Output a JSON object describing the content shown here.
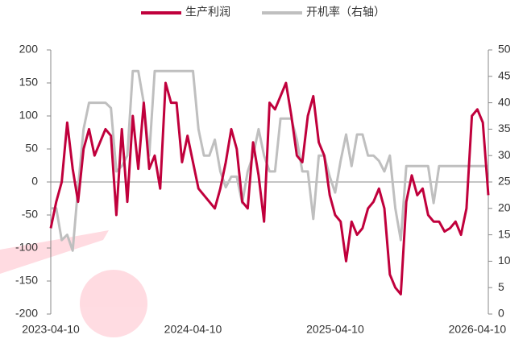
{
  "chart_data": {
    "type": "line",
    "categories": [
      "2023-04-10",
      null,
      null,
      null,
      null,
      null,
      null,
      null,
      null,
      null,
      null,
      null,
      null,
      null,
      null,
      null,
      null,
      null,
      null,
      null,
      null,
      null,
      null,
      null,
      null,
      null,
      "2024-04-10",
      null,
      null,
      null,
      null,
      null,
      null,
      null,
      null,
      null,
      null,
      null,
      null,
      null,
      null,
      null,
      null,
      null,
      null,
      null,
      null,
      null,
      null,
      null,
      null,
      null,
      "2025-04-10",
      null,
      null,
      null,
      null,
      null,
      null,
      null,
      null,
      null,
      null,
      null,
      null,
      null,
      null,
      null,
      null,
      null,
      null,
      null,
      null,
      null,
      null,
      null,
      null,
      null,
      "2026-04-10",
      null,
      null
    ],
    "series": [
      {
        "name": "生产利润",
        "color": "#c0003c",
        "axis": "y",
        "values": [
          -70,
          -30,
          0,
          90,
          20,
          -30,
          50,
          80,
          40,
          60,
          80,
          70,
          -50,
          80,
          -30,
          100,
          20,
          120,
          20,
          40,
          -10,
          150,
          120,
          120,
          30,
          70,
          30,
          -10,
          -20,
          -30,
          -40,
          -10,
          30,
          80,
          50,
          -30,
          -40,
          60,
          10,
          -60,
          120,
          110,
          130,
          150,
          100,
          40,
          30,
          100,
          130,
          60,
          40,
          -20,
          -50,
          -60,
          -120,
          -60,
          -80,
          -70,
          -40,
          -30,
          -10,
          -40,
          -140,
          -160,
          -170,
          -30,
          10,
          -20,
          -10,
          -50,
          -60,
          -60,
          -75,
          -70,
          -60,
          -80,
          -40,
          100,
          110,
          90,
          -20
        ]
      },
      {
        "name": "开机率（右轴）",
        "color": "#bfbfbf",
        "axis": "y2",
        "values": [
          20,
          20,
          14,
          15,
          12,
          24,
          35,
          40,
          40,
          40,
          40,
          39,
          27,
          28,
          30,
          46,
          46,
          40,
          30,
          46,
          46,
          46,
          46,
          46,
          46,
          46,
          46,
          35,
          30,
          30,
          33,
          27,
          24,
          26,
          26,
          21,
          27,
          30,
          35,
          30,
          27,
          27,
          37,
          37,
          37,
          33,
          27,
          27,
          18,
          30,
          30,
          26,
          23,
          29,
          34,
          28,
          34,
          34,
          30,
          30,
          29,
          27,
          30,
          20,
          14,
          28,
          28,
          28,
          28,
          28,
          21,
          28,
          28,
          28,
          28,
          28,
          28,
          28,
          28,
          28,
          28
        ]
      }
    ],
    "ylim": [
      -200,
      200
    ],
    "yticks": [
      -200,
      -150,
      -100,
      -50,
      0,
      50,
      100,
      150,
      200
    ],
    "y2lim": [
      0,
      50
    ],
    "y2ticks": [
      0,
      5,
      10,
      15,
      20,
      25,
      30,
      35,
      40,
      45,
      50
    ],
    "legend": "top"
  }
}
